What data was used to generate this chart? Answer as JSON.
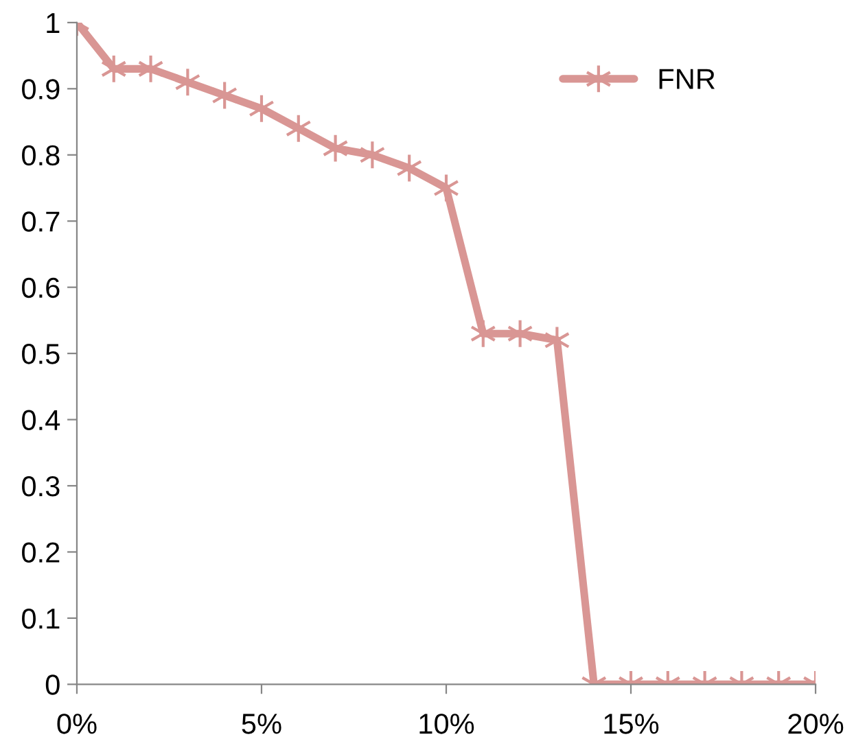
{
  "chart_data": {
    "type": "line",
    "x": [
      0,
      1,
      2,
      3,
      4,
      5,
      6,
      7,
      8,
      9,
      10,
      11,
      12,
      13,
      14,
      15,
      16,
      17,
      18,
      19,
      20
    ],
    "series": [
      {
        "name": "FNR",
        "color": "#d99694",
        "values": [
          1.0,
          0.93,
          0.93,
          0.91,
          0.89,
          0.87,
          0.84,
          0.81,
          0.8,
          0.78,
          0.75,
          0.53,
          0.53,
          0.52,
          0,
          0,
          0,
          0,
          0,
          0,
          0
        ]
      }
    ],
    "xlim": [
      0,
      20
    ],
    "xticks": [
      {
        "value": 0,
        "label": "0%"
      },
      {
        "value": 5,
        "label": "5%"
      },
      {
        "value": 10,
        "label": "10%"
      },
      {
        "value": 15,
        "label": "15%"
      },
      {
        "value": 20,
        "label": "20%"
      }
    ],
    "ylim": [
      0,
      1
    ],
    "yticks": [
      0,
      0.1,
      0.2,
      0.3,
      0.4,
      0.5,
      0.6,
      0.7,
      0.8,
      0.9,
      1
    ],
    "grid": false,
    "legend": "top right",
    "marker": "cross",
    "line_style": "solid"
  }
}
